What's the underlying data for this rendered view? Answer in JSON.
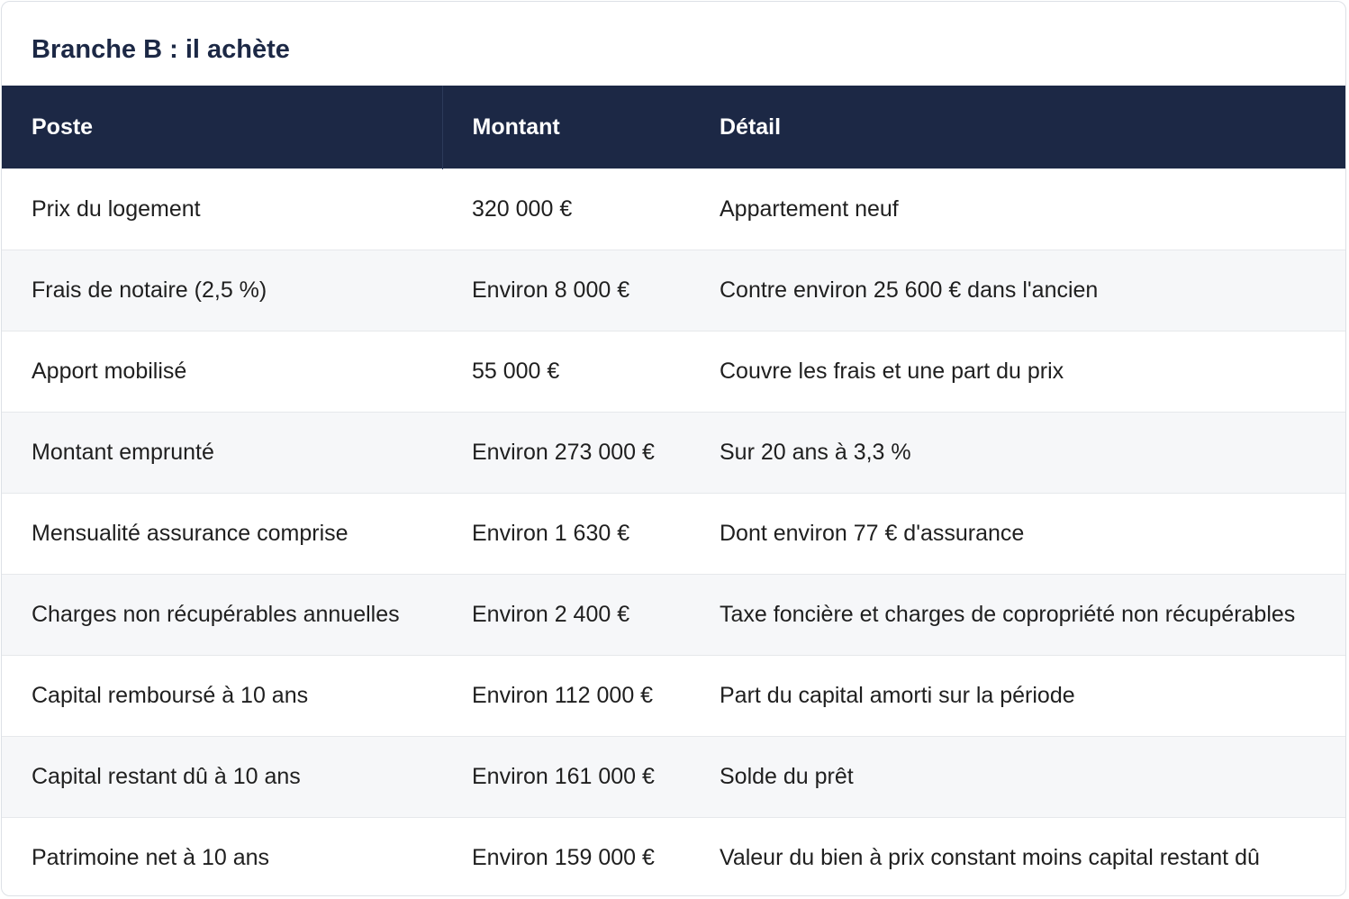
{
  "title": "Branche B : il achète",
  "table": {
    "headers": [
      "Poste",
      "Montant",
      "Détail"
    ],
    "rows": [
      [
        "Prix du logement",
        "320 000 €",
        "Appartement neuf"
      ],
      [
        "Frais de notaire (2,5 %)",
        "Environ 8 000 €",
        "Contre environ 25 600 € dans l'ancien"
      ],
      [
        "Apport mobilisé",
        "55 000 €",
        "Couvre les frais et une part du prix"
      ],
      [
        "Montant emprunté",
        "Environ 273 000 €",
        "Sur 20 ans à 3,3 %"
      ],
      [
        "Mensualité assurance comprise",
        "Environ 1 630 €",
        "Dont environ 77 € d'assurance"
      ],
      [
        "Charges non récupérables annuelles",
        "Environ 2 400 €",
        "Taxe foncière et charges de copropriété non récupérables"
      ],
      [
        "Capital remboursé à 10 ans",
        "Environ 112 000 €",
        "Part du capital amorti sur la période"
      ],
      [
        "Capital restant dû à 10 ans",
        "Environ 161 000 €",
        "Solde du prêt"
      ],
      [
        "Patrimoine net à 10 ans",
        "Environ 159 000 €",
        "Valeur du bien à prix constant moins capital restant dû"
      ]
    ]
  }
}
